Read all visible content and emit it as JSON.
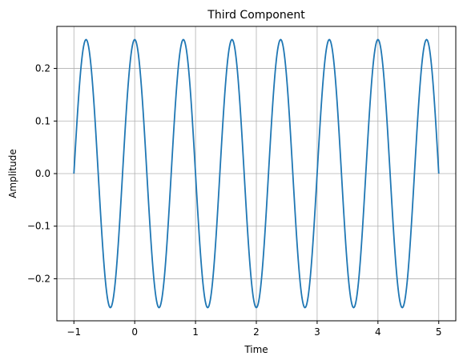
{
  "chart_data": {
    "type": "line",
    "title": "Third Component",
    "xlabel": "Time",
    "ylabel": "Amplitude",
    "xlim": [
      -1.28,
      5.28
    ],
    "ylim": [
      -0.28,
      0.28
    ],
    "xticks": [
      -1,
      0,
      1,
      2,
      3,
      4,
      5
    ],
    "yticks": [
      -0.2,
      -0.1,
      0.0,
      0.1,
      0.2
    ],
    "xtick_labels": [
      "−1",
      "0",
      "1",
      "2",
      "3",
      "4",
      "5"
    ],
    "ytick_labels": [
      "−0.2",
      "−0.1",
      "0.0",
      "0.1",
      "0.2"
    ],
    "grid": true,
    "series": [
      {
        "name": "Third Component",
        "color": "#1f77b4",
        "formula": "0.255*sin(2*pi*1.25*(t+1))",
        "amplitude": 0.255,
        "frequency_hz": 1.25,
        "x_start": -1,
        "x_end": 5,
        "samples": 600
      }
    ]
  }
}
